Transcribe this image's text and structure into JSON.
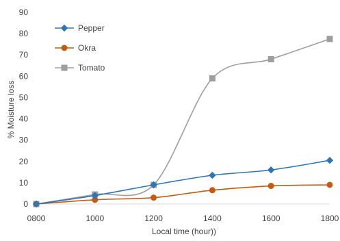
{
  "chart_data": {
    "type": "line",
    "title": "",
    "xlabel": "Local time (hour))",
    "ylabel": "% Moisture loss",
    "x": [
      "0800",
      "1000",
      "1200",
      "1400",
      "1600",
      "1800"
    ],
    "ylim": [
      0,
      90
    ],
    "yticks": [
      "0",
      "10",
      "20",
      "30",
      "40",
      "50",
      "60",
      "70",
      "80",
      "90"
    ],
    "grid": false,
    "legend_position": "top-left",
    "series": [
      {
        "name": "Pepper",
        "values": [
          0,
          4,
          9,
          13.5,
          16,
          20.5
        ],
        "color": "#2E75B6",
        "marker": "diamond"
      },
      {
        "name": "Okra",
        "values": [
          0,
          2,
          3,
          6.5,
          8.5,
          9
        ],
        "color": "#C55A11",
        "marker": "circle"
      },
      {
        "name": "Tomato",
        "values": [
          0,
          4.5,
          9,
          59,
          68,
          77.5
        ],
        "color": "#9E9E9E",
        "marker": "square"
      }
    ]
  }
}
